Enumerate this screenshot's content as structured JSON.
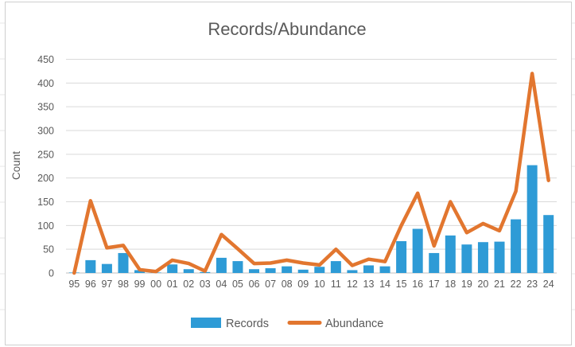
{
  "chart_data": {
    "type": "bar",
    "combo": "bar+line",
    "title": "Records/Abundance",
    "xlabel": "",
    "ylabel": "Count",
    "ylim": [
      0,
      450
    ],
    "yticks": [
      0,
      50,
      100,
      150,
      200,
      250,
      300,
      350,
      400,
      450
    ],
    "grid": true,
    "legend_position": "bottom",
    "categories": [
      "95",
      "96",
      "97",
      "98",
      "99",
      "00",
      "01",
      "02",
      "03",
      "04",
      "05",
      "06",
      "07",
      "08",
      "09",
      "10",
      "11",
      "12",
      "13",
      "14",
      "15",
      "16",
      "17",
      "18",
      "19",
      "20",
      "21",
      "22",
      "23",
      "24"
    ],
    "series": [
      {
        "name": "Records",
        "type": "bar",
        "color": "#2E9BD6",
        "values": [
          1,
          27,
          19,
          42,
          6,
          1,
          18,
          8,
          2,
          32,
          25,
          8,
          10,
          14,
          7,
          13,
          25,
          6,
          16,
          14,
          67,
          93,
          42,
          79,
          60,
          65,
          66,
          113,
          227,
          122
        ]
      },
      {
        "name": "Abundance",
        "type": "line",
        "color": "#E2762F",
        "values": [
          0,
          152,
          53,
          58,
          7,
          3,
          27,
          20,
          4,
          81,
          51,
          20,
          21,
          27,
          21,
          17,
          50,
          16,
          29,
          24,
          100,
          168,
          57,
          150,
          85,
          104,
          89,
          172,
          420,
          195
        ]
      }
    ]
  },
  "colors": {
    "grid": "#D9D9D9",
    "axis": "#BFBFBF",
    "text": "#595959",
    "title_text": "#595959",
    "chart_border": "#CFCFCF",
    "sheet_gridline": "#E7E7E7",
    "background": "#FFFFFF"
  }
}
